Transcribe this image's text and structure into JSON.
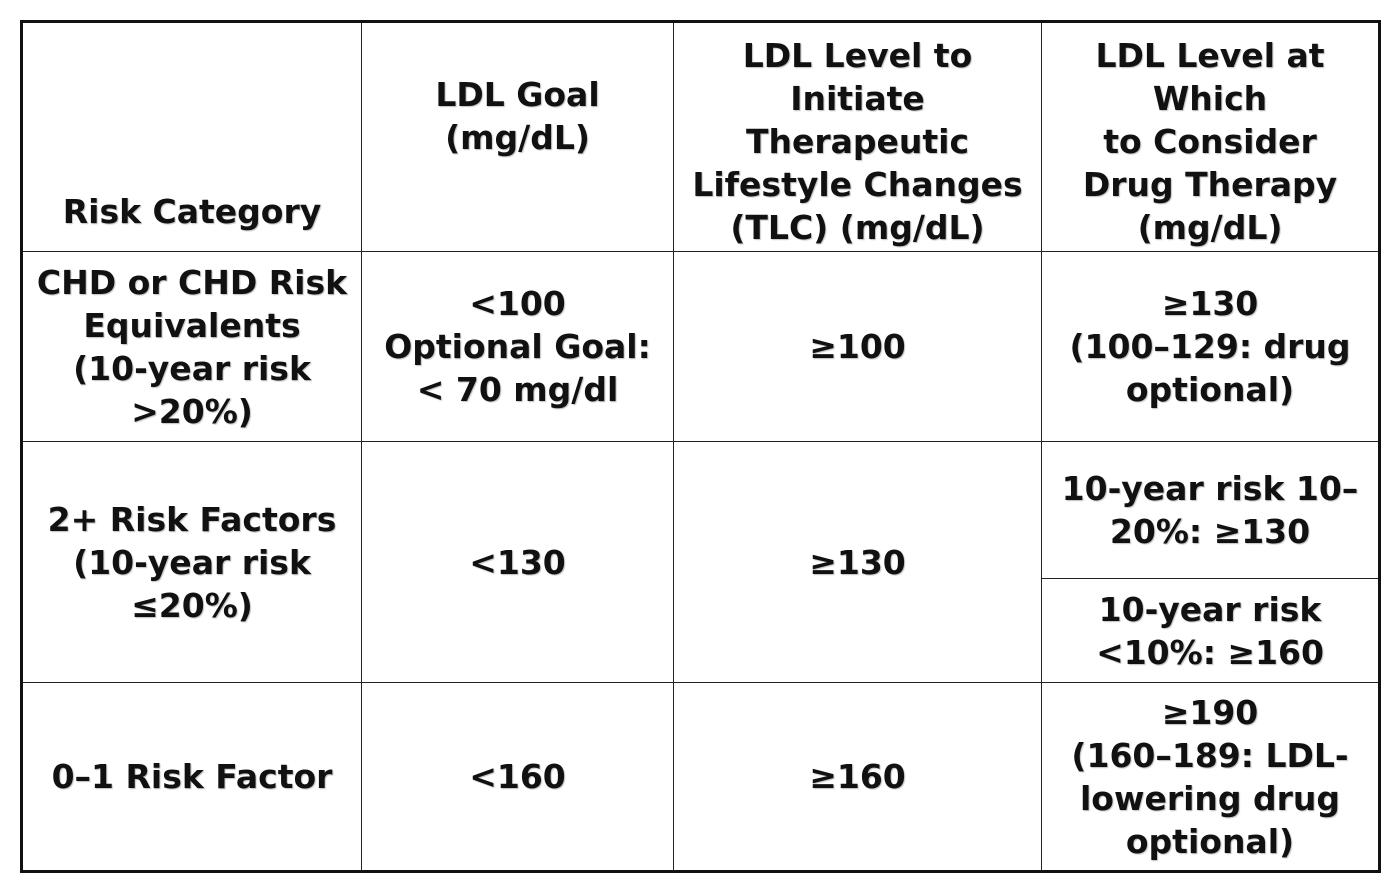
{
  "headers": {
    "risk_category": [
      "Risk Category"
    ],
    "ldl_goal": [
      "LDL Goal",
      "(mg/dL)"
    ],
    "tlc": [
      "LDL Level to",
      "Initiate",
      "Therapeutic",
      "Lifestyle Changes",
      "(TLC) (mg/dL)"
    ],
    "drug": [
      "LDL Level at",
      "Which",
      "to Consider",
      "Drug Therapy",
      "(mg/dL)"
    ]
  },
  "rows": [
    {
      "risk": [
        "CHD or CHD Risk",
        "Equivalents",
        "(10-year risk",
        ">20%)"
      ],
      "goal": [
        "<100",
        "Optional Goal:",
        "< 70 mg/dl"
      ],
      "tlc": [
        "≥100"
      ],
      "drug": [
        "≥130",
        "(100–129: drug",
        "optional)"
      ]
    },
    {
      "risk": [
        "2+ Risk Factors",
        "(10-year risk",
        "≤20%)"
      ],
      "goal": [
        "<130"
      ],
      "tlc": [
        "≥130"
      ],
      "drug_a": [
        "10-year risk 10–",
        "20%: ≥130"
      ],
      "drug_b": [
        "10-year risk",
        "<10%: ≥160"
      ]
    },
    {
      "risk": [
        "0–1 Risk Factor"
      ],
      "goal": [
        "<160"
      ],
      "tlc": [
        "≥160"
      ],
      "drug": [
        "≥190",
        "(160–189: LDL-",
        "lowering drug",
        "optional)"
      ]
    }
  ]
}
